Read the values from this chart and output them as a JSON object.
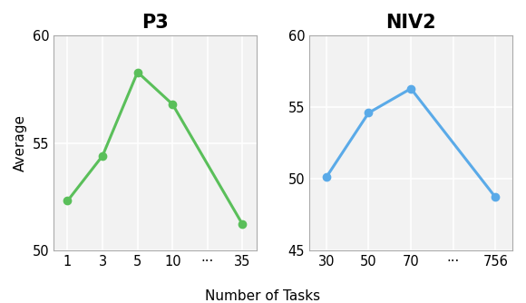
{
  "p3": {
    "title": "P3",
    "y_values": [
      52.3,
      54.4,
      58.3,
      56.8,
      51.2
    ],
    "x_tick_labels": [
      "1",
      "3",
      "5",
      "10",
      "···",
      "35"
    ],
    "data_indices": [
      0,
      1,
      2,
      3,
      5
    ],
    "ylim": [
      50,
      60
    ],
    "yticks": [
      50,
      55,
      60
    ],
    "color": "#5abf5a",
    "linewidth": 2.2,
    "markersize": 6
  },
  "niv2": {
    "title": "NIV2",
    "y_values": [
      50.1,
      54.6,
      56.3,
      48.7
    ],
    "x_tick_labels": [
      "30",
      "50",
      "70",
      "···",
      "756"
    ],
    "data_indices": [
      0,
      1,
      2,
      4
    ],
    "ylim": [
      45,
      60
    ],
    "yticks": [
      45,
      50,
      55,
      60
    ],
    "color": "#5aaae8",
    "linewidth": 2.2,
    "markersize": 6
  },
  "xlabel": "Number of Tasks",
  "ylabel": "Average",
  "title_fontsize": 15,
  "label_fontsize": 11,
  "tick_fontsize": 10.5,
  "background_color": "#f2f2f2"
}
